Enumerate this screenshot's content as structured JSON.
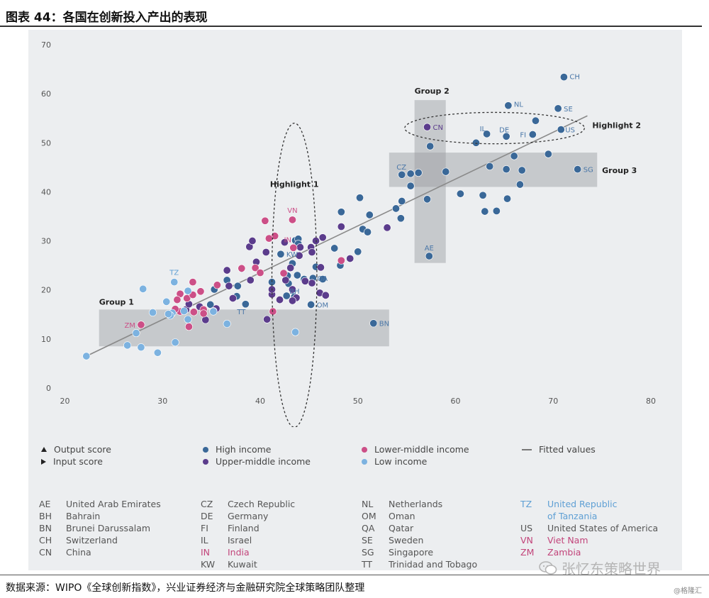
{
  "header": {
    "title": "图表 44：各国在创新投入产出的表现"
  },
  "chart_data": {
    "type": "scatter",
    "xlim": [
      20,
      80
    ],
    "ylim": [
      0,
      70
    ],
    "x_ticks": [
      "20",
      "30",
      "40",
      "50",
      "60",
      "70",
      "80"
    ],
    "y_ticks": [
      "0",
      "10",
      "20",
      "30",
      "40",
      "50",
      "60",
      "70"
    ],
    "grid": false,
    "colors": {
      "High income": "#3a6898",
      "Upper-middle income": "#5b3c8c",
      "Lower-middle income": "#cc4f87",
      "Low income": "#7cb2e0",
      "Fitted values": "#8a8a8a"
    },
    "fitted_line": [
      [
        22.2,
        6.5
      ],
      [
        73.5,
        55.5
      ]
    ],
    "series": [
      {
        "name": "High income",
        "points": [
          [
            71.1,
            63.4
          ],
          [
            65.4,
            57.6
          ],
          [
            70.5,
            57.0
          ],
          [
            68.2,
            54.5
          ],
          [
            65.2,
            51.3
          ],
          [
            67.9,
            51.7
          ],
          [
            63.2,
            51.8
          ],
          [
            70.8,
            52.7
          ],
          [
            62.1,
            50.0
          ],
          [
            57.4,
            49.3
          ],
          [
            66.0,
            47.3
          ],
          [
            69.5,
            47.7
          ],
          [
            72.5,
            44.6
          ],
          [
            63.5,
            45.2
          ],
          [
            65.2,
            44.6
          ],
          [
            66.8,
            44.4
          ],
          [
            59.0,
            44.1
          ],
          [
            54.5,
            43.5
          ],
          [
            55.4,
            43.7
          ],
          [
            56.2,
            43.9
          ],
          [
            55.4,
            41.2
          ],
          [
            66.6,
            41.5
          ],
          [
            57.1,
            38.5
          ],
          [
            60.5,
            39.6
          ],
          [
            62.8,
            39.3
          ],
          [
            64.2,
            36.1
          ],
          [
            65.3,
            38.6
          ],
          [
            63.0,
            36.0
          ],
          [
            53.9,
            36.6
          ],
          [
            54.5,
            38.1
          ],
          [
            54.4,
            34.6
          ],
          [
            50.2,
            38.8
          ],
          [
            51.2,
            35.3
          ],
          [
            50.5,
            32.4
          ],
          [
            51.0,
            31.8
          ],
          [
            50.0,
            27.8
          ],
          [
            48.3,
            35.9
          ],
          [
            48.2,
            25.0
          ],
          [
            47.6,
            28.5
          ],
          [
            57.3,
            26.9
          ],
          [
            51.6,
            13.2
          ],
          [
            43.6,
            30.1
          ],
          [
            42.1,
            27.3
          ],
          [
            43.9,
            30.4
          ],
          [
            43.9,
            29.4
          ],
          [
            43.3,
            25.4
          ],
          [
            45.7,
            24.7
          ],
          [
            42.8,
            22.9
          ],
          [
            41.2,
            21.6
          ],
          [
            42.9,
            21.3
          ],
          [
            43.8,
            23.0
          ],
          [
            44.5,
            22.2
          ],
          [
            45.4,
            22.4
          ],
          [
            46.4,
            22.2
          ],
          [
            42.7,
            18.8
          ],
          [
            43.5,
            18.6
          ],
          [
            45.2,
            17.0
          ],
          [
            38.1,
            24.3
          ],
          [
            37.6,
            18.7
          ],
          [
            36.6,
            22.0
          ],
          [
            37.7,
            20.8
          ],
          [
            38.5,
            17.1
          ],
          [
            35.3,
            20.1
          ],
          [
            34.9,
            17.0
          ]
        ]
      },
      {
        "name": "Upper-middle income",
        "points": [
          [
            57.1,
            53.2
          ],
          [
            53.0,
            32.7
          ],
          [
            49.2,
            26.4
          ],
          [
            48.3,
            32.9
          ],
          [
            46.4,
            30.7
          ],
          [
            45.7,
            30.0
          ],
          [
            45.2,
            28.7
          ],
          [
            44.1,
            28.7
          ],
          [
            44.0,
            27.0
          ],
          [
            45.3,
            27.7
          ],
          [
            42.5,
            29.7
          ],
          [
            43.1,
            24.5
          ],
          [
            42.6,
            22.0
          ],
          [
            43.3,
            20.1
          ],
          [
            43.7,
            18.4
          ],
          [
            42.0,
            18.0
          ],
          [
            41.2,
            19.1
          ],
          [
            43.3,
            17.8
          ],
          [
            46.1,
            19.4
          ],
          [
            46.7,
            18.9
          ],
          [
            45.3,
            21.4
          ],
          [
            44.6,
            21.8
          ],
          [
            46.2,
            24.6
          ],
          [
            40.6,
            27.7
          ],
          [
            39.6,
            25.7
          ],
          [
            38.9,
            28.8
          ],
          [
            39.2,
            30.0
          ],
          [
            39.0,
            22.0
          ],
          [
            41.2,
            20.1
          ],
          [
            36.8,
            20.8
          ],
          [
            36.6,
            24.0
          ],
          [
            35.5,
            16.2
          ],
          [
            33.8,
            16.6
          ],
          [
            34.4,
            13.9
          ],
          [
            40.7,
            14.0
          ],
          [
            37.2,
            18.3
          ],
          [
            32.4,
            16.0
          ],
          [
            32.7,
            17.1
          ]
        ]
      },
      {
        "name": "Lower-middle income",
        "points": [
          [
            43.3,
            34.3
          ],
          [
            43.4,
            28.6
          ],
          [
            40.5,
            34.1
          ],
          [
            41.5,
            31.0
          ],
          [
            40.9,
            30.5
          ],
          [
            39.5,
            24.5
          ],
          [
            38.1,
            24.4
          ],
          [
            40.0,
            23.5
          ],
          [
            42.4,
            23.4
          ],
          [
            41.3,
            15.6
          ],
          [
            33.1,
            21.6
          ],
          [
            32.5,
            18.3
          ],
          [
            31.8,
            19.2
          ],
          [
            33.1,
            19.0
          ],
          [
            31.5,
            18.0
          ],
          [
            31.8,
            15.6
          ],
          [
            32.7,
            12.5
          ],
          [
            33.2,
            15.5
          ],
          [
            34.2,
            16.0
          ],
          [
            34.2,
            15.2
          ],
          [
            35.2,
            15.7
          ],
          [
            35.6,
            21.0
          ],
          [
            27.8,
            12.9
          ],
          [
            48.3,
            26.0
          ],
          [
            31.3,
            16.1
          ],
          [
            33.9,
            19.7
          ]
        ]
      },
      {
        "name": "Low income",
        "points": [
          [
            22.2,
            6.5
          ],
          [
            26.4,
            8.7
          ],
          [
            27.8,
            8.3
          ],
          [
            29.5,
            7.2
          ],
          [
            31.3,
            9.3
          ],
          [
            27.3,
            11.2
          ],
          [
            28.0,
            20.2
          ],
          [
            29.0,
            15.4
          ],
          [
            30.4,
            17.6
          ],
          [
            31.2,
            21.6
          ],
          [
            32.6,
            19.8
          ],
          [
            31.0,
            15.3
          ],
          [
            32.2,
            15.7
          ],
          [
            30.8,
            14.8
          ],
          [
            32.6,
            14.0
          ],
          [
            35.2,
            15.6
          ],
          [
            36.6,
            13.1
          ],
          [
            43.6,
            11.4
          ],
          [
            30.6,
            15.1
          ]
        ]
      }
    ],
    "point_labels": [
      {
        "text": "CH",
        "x": 71.1,
        "y": 63.4,
        "color": "#4a77a8"
      },
      {
        "text": "NL",
        "x": 65.4,
        "y": 57.6,
        "color": "#4a77a8"
      },
      {
        "text": "SE",
        "x": 70.5,
        "y": 57.0,
        "color": "#4a77a8"
      },
      {
        "text": "IL",
        "x": 63.2,
        "y": 51.8,
        "color": "#4a77a8"
      },
      {
        "text": "DE",
        "x": 65.2,
        "y": 51.3,
        "color": "#4a77a8"
      },
      {
        "text": "FI",
        "x": 67.9,
        "y": 51.7,
        "color": "#4a77a8"
      },
      {
        "text": "US",
        "x": 70.8,
        "y": 52.7,
        "color": "#4a77a8"
      },
      {
        "text": "CN",
        "x": 57.1,
        "y": 53.2,
        "color": "#5b3c8c"
      },
      {
        "text": "CZ",
        "x": 55.4,
        "y": 43.7,
        "color": "#4a77a8"
      },
      {
        "text": "SG",
        "x": 72.5,
        "y": 44.6,
        "color": "#4a77a8"
      },
      {
        "text": "AE",
        "x": 57.3,
        "y": 26.9,
        "color": "#4a77a8"
      },
      {
        "text": "BN",
        "x": 51.6,
        "y": 13.2,
        "color": "#4a77a8"
      },
      {
        "text": "VN",
        "x": 43.3,
        "y": 34.3,
        "color": "#cc4f87"
      },
      {
        "text": "IN",
        "x": 43.4,
        "y": 28.6,
        "color": "#cc4f87"
      },
      {
        "text": "KW",
        "x": 42.1,
        "y": 27.3,
        "color": "#4a77a8"
      },
      {
        "text": "QA",
        "x": 45.4,
        "y": 22.4,
        "color": "#4a77a8"
      },
      {
        "text": "BH",
        "x": 42.7,
        "y": 18.8,
        "color": "#4a77a8"
      },
      {
        "text": "OM",
        "x": 45.2,
        "y": 17.0,
        "color": "#4a77a8"
      },
      {
        "text": "TT",
        "x": 38.5,
        "y": 17.1,
        "color": "#4a77a8"
      },
      {
        "text": "TZ",
        "x": 31.2,
        "y": 21.6,
        "color": "#5e9fd4"
      },
      {
        "text": "ZM",
        "x": 27.8,
        "y": 12.9,
        "color": "#cc4f87"
      }
    ],
    "annotations": [
      {
        "label": "Group 1",
        "x_range": [
          23.5,
          53.2
        ],
        "y_range": [
          8.5,
          16.0
        ]
      },
      {
        "label": "Group 2",
        "x_range": [
          55.8,
          59.0
        ],
        "y_range": [
          25.5,
          58.7
        ]
      },
      {
        "label": "Group 3",
        "x_range": [
          53.2,
          74.5
        ],
        "y_range": [
          41.0,
          48.0
        ]
      },
      {
        "label": "Highlight 1",
        "center": [
          43.5,
          23.0
        ],
        "radius": [
          2.3,
          31.0
        ]
      },
      {
        "label": "Highlight 2",
        "center": [
          64.0,
          53.0
        ],
        "radius": [
          9.2,
          3.2
        ]
      }
    ]
  },
  "legend": [
    {
      "kind": "triangle-up",
      "label": "Output score"
    },
    {
      "kind": "triangle-right",
      "label": "Input score"
    },
    {
      "kind": "dot",
      "label": "High income",
      "color": "#3a6898"
    },
    {
      "kind": "dot",
      "label": "Upper-middle income",
      "color": "#5b3c8c"
    },
    {
      "kind": "dot",
      "label": "Lower-middle income",
      "color": "#cc4f87"
    },
    {
      "kind": "dot",
      "label": "Low income",
      "color": "#7cb2e0"
    },
    {
      "kind": "line",
      "label": "Fitted values",
      "color": "#777777"
    }
  ],
  "abbreviations": {
    "col1": [
      {
        "code": "AE",
        "name": "United Arab Emirates"
      },
      {
        "code": "BH",
        "name": "Bahrain"
      },
      {
        "code": "BN",
        "name": "Brunei Darussalam"
      },
      {
        "code": "CH",
        "name": "Switzerland"
      },
      {
        "code": "CN",
        "name": "China"
      }
    ],
    "col2": [
      {
        "code": "CZ",
        "name": "Czech Republic"
      },
      {
        "code": "DE",
        "name": "Germany"
      },
      {
        "code": "FI",
        "name": "Finland"
      },
      {
        "code": "IL",
        "name": "Israel"
      },
      {
        "code": "IN",
        "name": "India"
      },
      {
        "code": "KW",
        "name": "Kuwait"
      }
    ],
    "col3": [
      {
        "code": "NL",
        "name": "Netherlands"
      },
      {
        "code": "OM",
        "name": "Oman"
      },
      {
        "code": "QA",
        "name": "Qatar"
      },
      {
        "code": "SE",
        "name": "Sweden"
      },
      {
        "code": "SG",
        "name": "Singapore"
      },
      {
        "code": "TT",
        "name": "Trinidad and Tobago"
      }
    ],
    "col4": [
      {
        "code": "TZ",
        "name": "United Republic",
        "name2": "of Tanzania"
      },
      {
        "code": "US",
        "name": "United States of America"
      },
      {
        "code": "VN",
        "name": "Viet Nam"
      },
      {
        "code": "ZM",
        "name": "Zambia"
      }
    ]
  },
  "footer": {
    "source": "数据来源：WIPO《全球创新指数》，兴业证券经济与金融研究院全球策略团队整理",
    "credit": "@格隆汇",
    "watermark": "张忆东策略世界"
  }
}
